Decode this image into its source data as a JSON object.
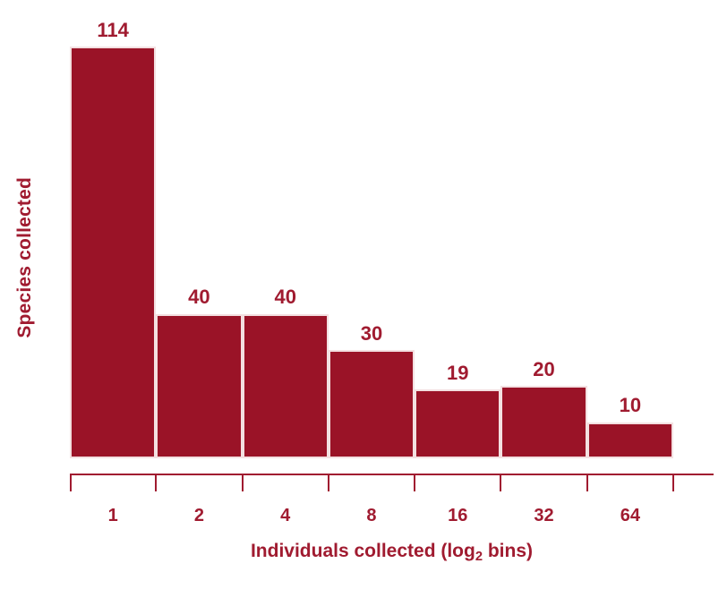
{
  "colors": {
    "text": "#A01B30",
    "axis": "#A01B30",
    "bar_fill": "#9A1327",
    "bar_border": "#F3E0E1",
    "background": "#FFFFFF"
  },
  "chart_data": {
    "type": "bar",
    "title": "",
    "categories": [
      "1",
      "2",
      "4",
      "8",
      "16",
      "32",
      "64"
    ],
    "values": [
      114,
      40,
      40,
      30,
      19,
      20,
      10
    ],
    "bar_value_labels": [
      "114",
      "40",
      "40",
      "30",
      "19",
      "20",
      "10"
    ],
    "xlabel": "Individuals collected (log₂ bins)",
    "xlabel_parts": {
      "prefix": "Individuals collected (log",
      "subscript": "2",
      "suffix": " bins)"
    },
    "ylabel": "Species collected",
    "ylim": [
      0,
      114
    ],
    "grid": false,
    "legend_position": "none",
    "axis": {
      "tick_count": 8,
      "ticks_at_bin_edges": true,
      "tick_direction": "down"
    }
  }
}
